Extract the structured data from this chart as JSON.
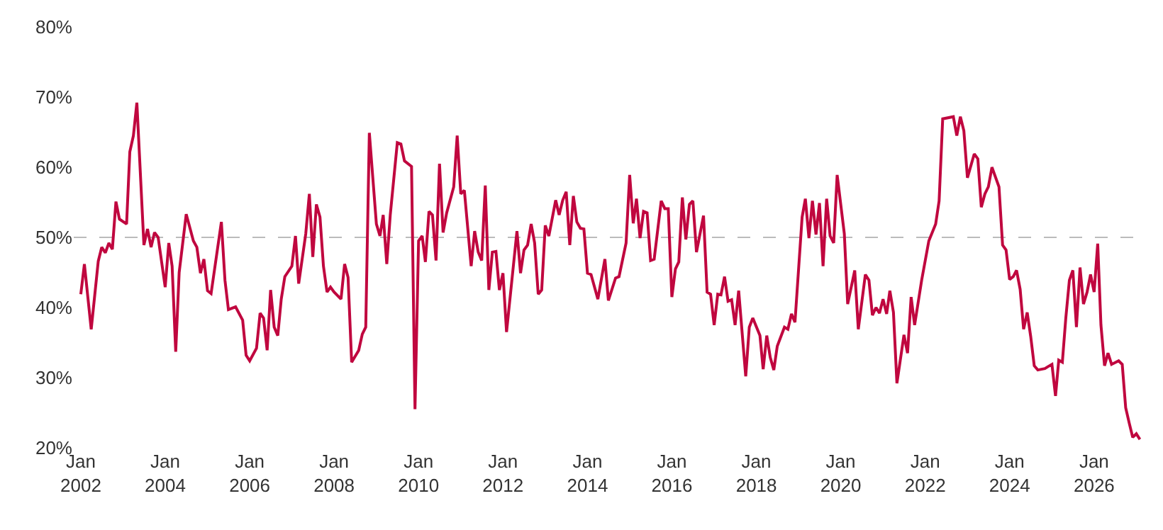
{
  "chart_data": {
    "type": "line",
    "x": [
      "2002-01",
      "2002-02",
      "2002-04",
      "2002-06",
      "2002-07",
      "2002-08",
      "2002-09",
      "2002-10",
      "2002-11",
      "2002-12",
      "2003-02",
      "2003-03",
      "2003-04",
      "2003-05",
      "2003-07",
      "2003-08",
      "2003-09",
      "2003-10",
      "2003-11",
      "2004-01",
      "2004-02",
      "2004-03",
      "2004-04",
      "2004-05",
      "2004-07",
      "2004-09",
      "2004-10",
      "2004-11",
      "2004-12",
      "2005-01",
      "2005-02",
      "2005-05",
      "2005-06",
      "2005-07",
      "2005-09",
      "2005-11",
      "2005-12",
      "2006-01",
      "2006-03",
      "2006-04",
      "2006-05",
      "2006-06",
      "2006-07",
      "2006-08",
      "2006-09",
      "2006-10",
      "2006-11",
      "2007-01",
      "2007-02",
      "2007-03",
      "2007-05",
      "2007-06",
      "2007-07",
      "2007-08",
      "2007-09",
      "2007-10",
      "2007-11",
      "2007-12",
      "2008-01",
      "2008-03",
      "2008-04",
      "2008-05",
      "2008-06",
      "2008-08",
      "2008-09",
      "2008-10",
      "2008-11",
      "2009-01",
      "2009-02",
      "2009-03",
      "2009-04",
      "2009-05",
      "2009-07",
      "2009-08",
      "2009-09",
      "2009-11",
      "2009-12",
      "2010-01",
      "2010-02",
      "2010-03",
      "2010-04",
      "2010-05",
      "2010-06",
      "2010-07",
      "2010-08",
      "2010-09",
      "2010-11",
      "2010-12",
      "2011-01",
      "2011-02",
      "2011-04",
      "2011-05",
      "2011-06",
      "2011-07",
      "2011-08",
      "2011-09",
      "2011-10",
      "2011-11",
      "2011-12",
      "2012-01",
      "2012-02",
      "2012-05",
      "2012-06",
      "2012-07",
      "2012-08",
      "2012-09",
      "2012-10",
      "2012-11",
      "2012-12",
      "2013-01",
      "2013-02",
      "2013-04",
      "2013-05",
      "2013-06",
      "2013-07",
      "2013-08",
      "2013-09",
      "2013-10",
      "2013-11",
      "2013-12",
      "2014-01",
      "2014-02",
      "2014-04",
      "2014-06",
      "2014-07",
      "2014-09",
      "2014-10",
      "2014-12",
      "2015-01",
      "2015-02",
      "2015-03",
      "2015-04",
      "2015-05",
      "2015-06",
      "2015-07",
      "2015-08",
      "2015-10",
      "2015-11",
      "2015-12",
      "2016-01",
      "2016-02",
      "2016-03",
      "2016-04",
      "2016-05",
      "2016-06",
      "2016-07",
      "2016-08",
      "2016-10",
      "2016-11",
      "2016-12",
      "2017-01",
      "2017-02",
      "2017-03",
      "2017-04",
      "2017-05",
      "2017-06",
      "2017-07",
      "2017-08",
      "2017-10",
      "2017-11",
      "2017-12",
      "2018-02",
      "2018-03",
      "2018-04",
      "2018-05",
      "2018-06",
      "2018-07",
      "2018-09",
      "2018-10",
      "2018-11",
      "2018-12",
      "2019-02",
      "2019-03",
      "2019-04",
      "2019-05",
      "2019-06",
      "2019-07",
      "2019-08",
      "2019-09",
      "2019-10",
      "2019-11",
      "2019-12",
      "2020-02",
      "2020-03",
      "2020-05",
      "2020-06",
      "2020-08",
      "2020-09",
      "2020-10",
      "2020-11",
      "2020-12",
      "2021-01",
      "2021-02",
      "2021-03",
      "2021-04",
      "2021-05",
      "2021-07",
      "2021-08",
      "2021-09",
      "2021-10",
      "2021-12",
      "2022-02",
      "2022-04",
      "2022-05",
      "2022-06",
      "2022-09",
      "2022-10",
      "2022-11",
      "2022-12",
      "2023-01",
      "2023-03",
      "2023-04",
      "2023-05",
      "2023-06",
      "2023-07",
      "2023-08",
      "2023-10",
      "2023-11",
      "2023-12",
      "2024-01",
      "2024-02",
      "2024-03",
      "2024-04",
      "2024-05",
      "2024-06",
      "2024-07",
      "2024-08",
      "2024-09",
      "2024-11",
      "2024-12",
      "2025-01",
      "2025-02",
      "2025-03",
      "2025-04",
      "2025-05",
      "2025-06",
      "2025-07",
      "2025-08",
      "2025-09",
      "2025-10",
      "2025-11",
      "2025-12",
      "2026-01",
      "2026-02",
      "2026-03",
      "2026-04",
      "2026-05",
      "2026-06",
      "2026-08",
      "2026-09",
      "2026-10",
      "2026-11",
      "2026-12",
      "2027-01",
      "2027-02"
    ],
    "series": [
      {
        "color": "#c0073f",
        "values": [
          41.9,
          46.2,
          36.9,
          46.6,
          48.6,
          47.8,
          49.2,
          48.3,
          55.1,
          52.6,
          51.9,
          62.2,
          64.5,
          69.2,
          48.9,
          51.2,
          48.6,
          50.7,
          50.0,
          42.9,
          49.2,
          45.9,
          33.7,
          45.0,
          53.3,
          49.5,
          48.6,
          44.9,
          46.9,
          42.4,
          42.0,
          52.2,
          43.9,
          39.7,
          40.1,
          38.2,
          33.2,
          32.4,
          34.2,
          39.2,
          38.5,
          33.9,
          42.5,
          37.2,
          36.0,
          41.2,
          44.4,
          45.9,
          50.2,
          43.4,
          50.5,
          56.2,
          47.2,
          54.7,
          52.9,
          45.9,
          42.2,
          42.9,
          42.2,
          41.2,
          46.2,
          44.3,
          32.2,
          33.9,
          36.2,
          37.2,
          64.9,
          51.9,
          50.2,
          53.2,
          46.2,
          53.2,
          63.5,
          63.3,
          60.9,
          60.1,
          25.5,
          49.5,
          50.2,
          46.5,
          53.7,
          53.2,
          46.7,
          60.5,
          50.7,
          53.5,
          57.2,
          64.5,
          56.2,
          56.7,
          45.9,
          50.9,
          47.9,
          46.7,
          57.4,
          42.5,
          47.9,
          48.0,
          42.5,
          44.9,
          36.5,
          50.9,
          44.9,
          48.2,
          48.9,
          51.9,
          49.2,
          41.9,
          42.5,
          51.7,
          50.2,
          55.3,
          53.2,
          55.3,
          56.5,
          48.9,
          55.9,
          52.2,
          51.3,
          51.2,
          44.9,
          44.7,
          41.2,
          46.9,
          41.0,
          44.2,
          44.4,
          49.2,
          58.9,
          52.0,
          55.5,
          49.9,
          53.7,
          53.5,
          46.7,
          46.9,
          55.2,
          54.1,
          54.1,
          41.5,
          45.5,
          46.5,
          55.7,
          49.7,
          54.7,
          55.2,
          47.9,
          53.1,
          42.2,
          41.9,
          37.5,
          41.9,
          41.8,
          44.4,
          40.9,
          41.1,
          37.5,
          42.4,
          30.2,
          37.2,
          38.5,
          36.0,
          31.2,
          36.0,
          32.9,
          31.1,
          34.5,
          37.2,
          36.9,
          39.1,
          37.9,
          52.9,
          55.5,
          49.9,
          55.2,
          50.4,
          54.9,
          45.9,
          55.5,
          50.2,
          49.2,
          58.9,
          50.5,
          40.5,
          45.3,
          36.9,
          44.7,
          43.9,
          38.9,
          40.0,
          39.2,
          41.2,
          39.1,
          42.4,
          39.3,
          29.2,
          36.1,
          33.5,
          41.5,
          37.5,
          43.9,
          49.5,
          51.9,
          55.2,
          66.9,
          67.2,
          64.5,
          67.2,
          65.2,
          58.5,
          61.9,
          61.2,
          54.3,
          56.2,
          57.2,
          60.0,
          57.2,
          48.9,
          48.2,
          44.0,
          44.4,
          45.3,
          42.6,
          36.9,
          39.3,
          35.9,
          31.7,
          31.1,
          31.3,
          31.6,
          31.9,
          27.4,
          32.5,
          32.2,
          38.5,
          43.9,
          45.3,
          37.2,
          45.7,
          40.5,
          42.2,
          44.7,
          42.2,
          49.1,
          37.5,
          31.7,
          33.5,
          31.9,
          32.4,
          31.9,
          25.7,
          23.5,
          21.5,
          22.0,
          21.2
        ]
      }
    ],
    "xlim": [
      "2001-11",
      "2027-03"
    ],
    "xticks": [
      {
        "value": "2002-01",
        "label": "Jan\n2002"
      },
      {
        "value": "2004-01",
        "label": "Jan\n2004"
      },
      {
        "value": "2006-01",
        "label": "Jan\n2006"
      },
      {
        "value": "2008-01",
        "label": "Jan\n2008"
      },
      {
        "value": "2010-01",
        "label": "Jan\n2010"
      },
      {
        "value": "2012-01",
        "label": "Jan\n2012"
      },
      {
        "value": "2014-01",
        "label": "Jan\n2014"
      },
      {
        "value": "2016-01",
        "label": "Jan\n2016"
      },
      {
        "value": "2018-01",
        "label": "Jan\n2018"
      },
      {
        "value": "2020-01",
        "label": "Jan\n2020"
      },
      {
        "value": "2022-01",
        "label": "Jan\n2022"
      },
      {
        "value": "2024-01",
        "label": "Jan\n2024"
      },
      {
        "value": "2026-01",
        "label": "Jan\n2026"
      }
    ],
    "ylim": [
      20,
      80
    ],
    "yticks": [
      {
        "value": 20,
        "label": "20%"
      },
      {
        "value": 30,
        "label": "30%"
      },
      {
        "value": 40,
        "label": "40%"
      },
      {
        "value": 50,
        "label": "50%"
      },
      {
        "value": 60,
        "label": "60%"
      },
      {
        "value": 70,
        "label": "70%"
      },
      {
        "value": 80,
        "label": "80%"
      }
    ],
    "ref_lines": [
      {
        "axis": "y",
        "value": 50,
        "color": "#bbbbbb",
        "line_style": "dashed"
      }
    ],
    "grid": false,
    "marker": "none",
    "line_style": "solid"
  }
}
